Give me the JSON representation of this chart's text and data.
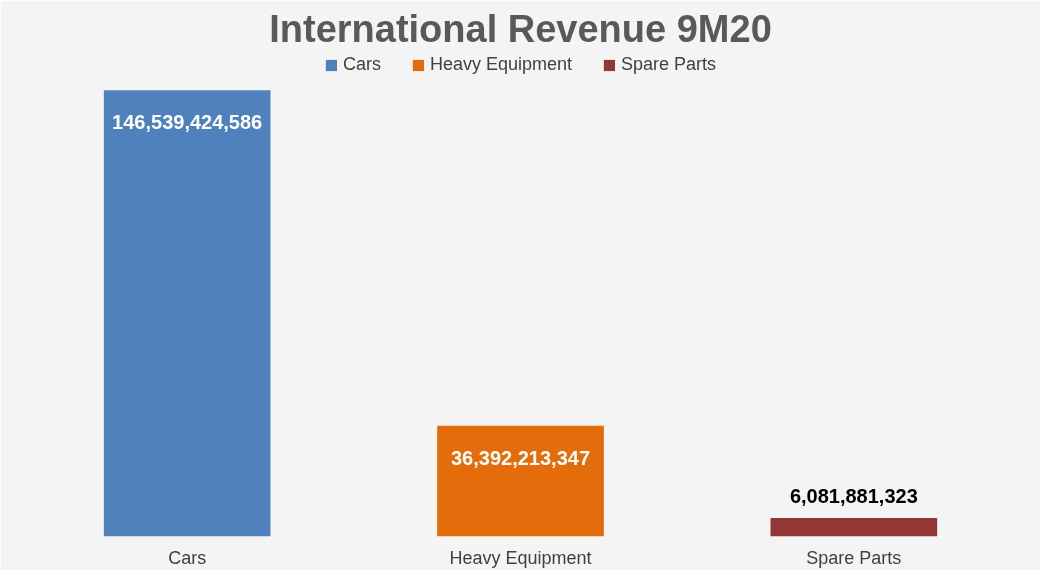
{
  "chart_data": {
    "type": "bar",
    "title": "International Revenue 9M20",
    "categories": [
      "Cars",
      "Heavy Equipment",
      "Spare Parts"
    ],
    "series": [
      {
        "name": "Cars",
        "color": "#4f81bd",
        "values": [
          146539424586,
          null,
          null
        ],
        "value_labels": [
          "146,539,424,586",
          null,
          null
        ]
      },
      {
        "name": "Heavy Equipment",
        "color": "#e46c0a",
        "values": [
          null,
          36392213347,
          null
        ],
        "value_labels": [
          null,
          "36,392,213,347",
          null
        ]
      },
      {
        "name": "Spare Parts",
        "color": "#953735",
        "values": [
          null,
          null,
          6081881323
        ],
        "value_labels": [
          null,
          null,
          "6,081,881,323"
        ]
      }
    ],
    "legend": "top",
    "grid": false
  }
}
